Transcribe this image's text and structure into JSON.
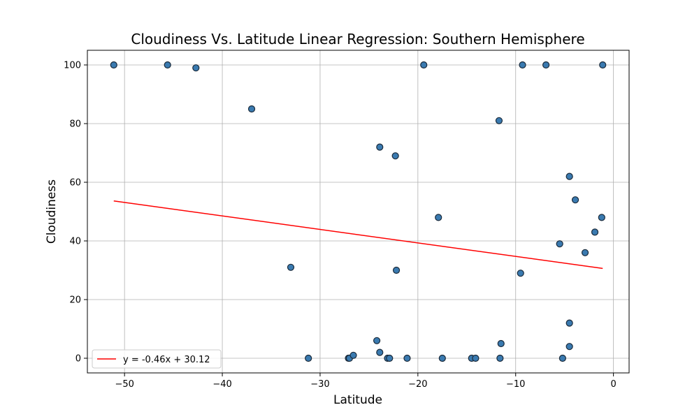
{
  "chart_data": {
    "type": "scatter",
    "title": "Cloudiness Vs. Latitude Linear Regression: Southern Hemisphere",
    "xlabel": "Latitude",
    "ylabel": "Cloudiness",
    "xlim": [
      -53.8,
      1.6
    ],
    "ylim": [
      -5,
      105
    ],
    "xticks": [
      -50,
      -40,
      -30,
      -20,
      -10,
      0
    ],
    "yticks": [
      0,
      20,
      40,
      60,
      80,
      100
    ],
    "grid": true,
    "legend": {
      "position": "bottom-left",
      "entries": [
        "y = -0.46x + 30.12"
      ]
    },
    "colors": {
      "point_fill": "#3a7ab0",
      "point_edge": "#1a2a3a",
      "line": "#ff0000",
      "grid": "#b0b0b0"
    },
    "points": [
      [
        -51.1,
        100
      ],
      [
        -45.6,
        100
      ],
      [
        -42.7,
        99
      ],
      [
        -37.0,
        85
      ],
      [
        -33.0,
        31
      ],
      [
        -31.2,
        0
      ],
      [
        -27.1,
        0
      ],
      [
        -27.0,
        0
      ],
      [
        -26.6,
        1
      ],
      [
        -24.2,
        6
      ],
      [
        -23.9,
        72
      ],
      [
        -23.9,
        2
      ],
      [
        -23.1,
        0
      ],
      [
        -22.9,
        0
      ],
      [
        -22.3,
        69
      ],
      [
        -22.2,
        30
      ],
      [
        -21.1,
        0
      ],
      [
        -19.4,
        100
      ],
      [
        -17.9,
        48
      ],
      [
        -17.5,
        0
      ],
      [
        -14.5,
        0
      ],
      [
        -14.1,
        0
      ],
      [
        -11.7,
        81
      ],
      [
        -11.6,
        0
      ],
      [
        -11.5,
        5
      ],
      [
        -9.5,
        29
      ],
      [
        -9.3,
        100
      ],
      [
        -6.9,
        100
      ],
      [
        -5.5,
        39
      ],
      [
        -5.2,
        0
      ],
      [
        -4.5,
        62
      ],
      [
        -4.5,
        12
      ],
      [
        -4.5,
        4
      ],
      [
        -3.9,
        54
      ],
      [
        -2.9,
        36
      ],
      [
        -1.9,
        43
      ],
      [
        -1.2,
        48
      ],
      [
        -1.1,
        100
      ]
    ],
    "regression": {
      "slope": -0.46,
      "intercept": 30.12,
      "x_range": [
        -51.1,
        -1.1
      ],
      "label": "y = -0.46x + 30.12"
    }
  }
}
